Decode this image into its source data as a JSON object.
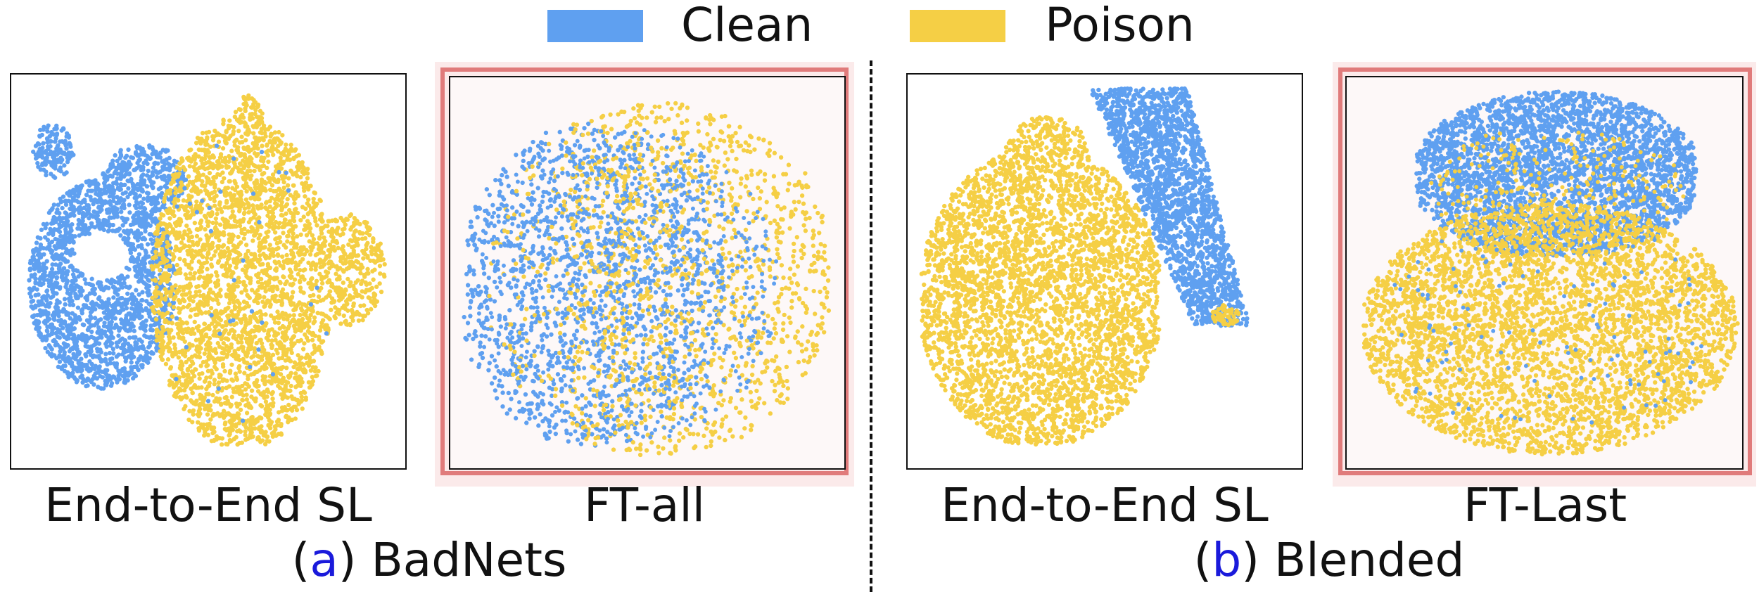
{
  "legend": {
    "items": [
      {
        "label": "Clean",
        "color": "#5fa0f0"
      },
      {
        "label": "Poison",
        "color": "#f5cf45"
      }
    ]
  },
  "panels": [
    {
      "label": "End-to-End SL",
      "highlighted": false
    },
    {
      "label": "FT-all",
      "highlighted": true
    },
    {
      "label": "End-to-End SL",
      "highlighted": false
    },
    {
      "label": "FT-Last",
      "highlighted": true
    }
  ],
  "groups": [
    {
      "letter": "a",
      "name": "BadNets"
    },
    {
      "letter": "b",
      "name": "Blended"
    }
  ],
  "chart_data": [
    {
      "type": "scatter",
      "group": "BadNets",
      "label": "End-to-End SL",
      "series": [
        "Clean",
        "Poison"
      ]
    },
    {
      "type": "scatter",
      "group": "BadNets",
      "label": "FT-all",
      "series": [
        "Clean",
        "Poison"
      ]
    },
    {
      "type": "scatter",
      "group": "Blended",
      "label": "End-to-End SL",
      "series": [
        "Clean",
        "Poison"
      ]
    },
    {
      "type": "scatter",
      "group": "Blended",
      "label": "FT-Last",
      "series": [
        "Clean",
        "Poison"
      ]
    }
  ]
}
